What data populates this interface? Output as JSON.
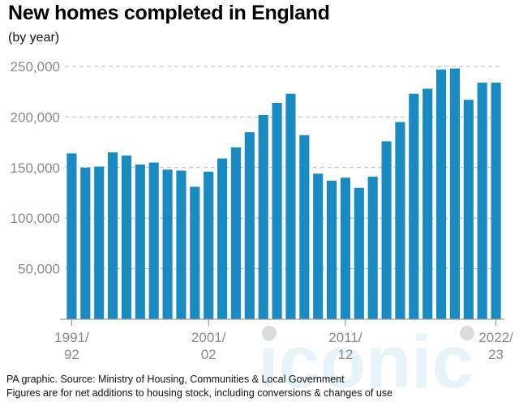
{
  "title": "New homes completed in England",
  "subtitle": "(by year)",
  "source_lines": [
    "PA graphic. Source: Ministry of Housing, Communities & Local Government",
    "Figures are for net additions to housing stock, including conversions & changes of use"
  ],
  "watermark": "iconic",
  "chart_data": {
    "type": "bar",
    "title": "New homes completed in England",
    "subtitle": "(by year)",
    "xlabel": "",
    "ylabel": "",
    "ylim": [
      0,
      250000
    ],
    "yticks": [
      50000,
      100000,
      150000,
      200000,
      250000
    ],
    "ytick_labels": [
      "50,000",
      "100,000",
      "150,000",
      "200,000",
      "250,000"
    ],
    "grid": true,
    "bar_color": "#1a8bc2",
    "x_tick_labels": [
      {
        "index": 0,
        "lines": [
          "1991/",
          "92"
        ]
      },
      {
        "index": 10,
        "lines": [
          "2001/",
          "02"
        ]
      },
      {
        "index": 20,
        "lines": [
          "2011/",
          "12"
        ]
      },
      {
        "index": 31,
        "lines": [
          "2022/",
          "23"
        ]
      }
    ],
    "categories": [
      "1991/92",
      "1992/93",
      "1993/94",
      "1994/95",
      "1995/96",
      "1996/97",
      "1997/98",
      "1998/99",
      "1999/00",
      "2000/01",
      "2001/02",
      "2002/03",
      "2003/04",
      "2004/05",
      "2005/06",
      "2006/07",
      "2007/08",
      "2008/09",
      "2009/10",
      "2010/11",
      "2011/12",
      "2012/13",
      "2013/14",
      "2014/15",
      "2015/16",
      "2016/17",
      "2017/18",
      "2018/19",
      "2019/20",
      "2020/21",
      "2021/22",
      "2022/23"
    ],
    "values": [
      164000,
      150000,
      151000,
      165000,
      162000,
      153000,
      155000,
      148000,
      147000,
      131000,
      146000,
      159000,
      170000,
      185000,
      202000,
      214000,
      223000,
      182000,
      144000,
      137000,
      140000,
      130000,
      141000,
      176000,
      195000,
      223000,
      228000,
      247000,
      248000,
      217000,
      234000,
      234000
    ]
  }
}
